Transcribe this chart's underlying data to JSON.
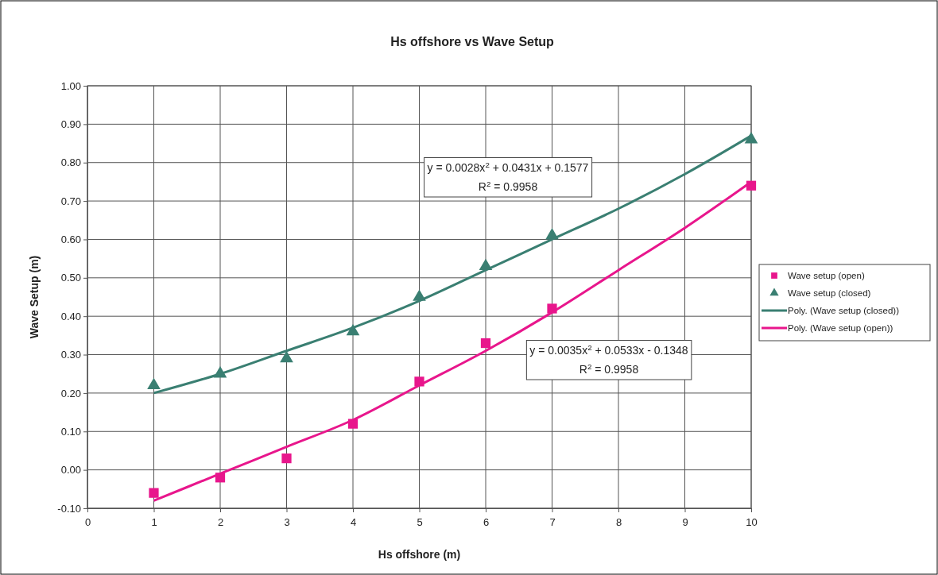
{
  "chart_data": {
    "type": "scatter",
    "title": "Hs offshore vs Wave Setup",
    "xlabel": "Hs offshore (m)",
    "ylabel": "Wave Setup (m)",
    "xlim": [
      0,
      10
    ],
    "xticks": [
      0,
      1,
      2,
      3,
      4,
      5,
      6,
      7,
      8,
      9,
      10
    ],
    "ylim": [
      -0.1,
      1.0
    ],
    "yticks": [
      {
        "value": -0.1,
        "label": "-0.10"
      },
      {
        "value": 0,
        "label": "0.00"
      },
      {
        "value": 0.1,
        "label": "0.10"
      },
      {
        "value": 0.2,
        "label": "0.20"
      },
      {
        "value": 0.3,
        "label": "0.30"
      },
      {
        "value": 0.4,
        "label": "0.40"
      },
      {
        "value": 0.5,
        "label": "0.50"
      },
      {
        "value": 0.6,
        "label": "0.60"
      },
      {
        "value": 0.7,
        "label": "0.70"
      },
      {
        "value": 0.8,
        "label": "0.80"
      },
      {
        "value": 0.9,
        "label": "0.90"
      },
      {
        "value": 1.0,
        "label": "1.00"
      }
    ],
    "grid": true,
    "legend": "right",
    "series": [
      {
        "name": "Wave setup (open)",
        "marker": "square",
        "color": "#e8168c",
        "x": [
          1,
          2,
          3,
          4,
          5,
          6,
          7,
          10
        ],
        "values": [
          -0.06,
          -0.02,
          0.03,
          0.12,
          0.23,
          0.33,
          0.42,
          0.74
        ]
      },
      {
        "name": "Wave setup (closed)",
        "marker": "triangle",
        "color": "#3a7f72",
        "x": [
          1,
          2,
          3,
          4,
          5,
          6,
          7,
          10
        ],
        "values": [
          0.22,
          0.25,
          0.29,
          0.36,
          0.45,
          0.53,
          0.61,
          0.86
        ]
      },
      {
        "name": "Poly. (Wave setup (closed))",
        "type": "line",
        "marker": "none",
        "color": "#3a7f72",
        "x": [
          1,
          2,
          3,
          4,
          5,
          6,
          7,
          8,
          9,
          10
        ],
        "values": [
          0.2,
          0.25,
          0.31,
          0.37,
          0.44,
          0.52,
          0.6,
          0.68,
          0.77,
          0.87
        ]
      },
      {
        "name": "Poly. (Wave setup (open))",
        "type": "line",
        "marker": "none",
        "color": "#e8168c",
        "x": [
          1,
          2,
          3,
          4,
          5,
          6,
          7,
          8,
          9,
          10
        ],
        "values": [
          -0.08,
          -0.01,
          0.06,
          0.13,
          0.22,
          0.31,
          0.41,
          0.52,
          0.63,
          0.75
        ]
      }
    ],
    "annotations": [
      "y = 0.0028x$^{2}$ + 0.0431x + 0.1577\nR$^{2}$ = 0.9958",
      "y = 0.0035x$^{2}$ + 0.0533x - 0.1348\nR$^{2}$ = 0.9958"
    ]
  }
}
